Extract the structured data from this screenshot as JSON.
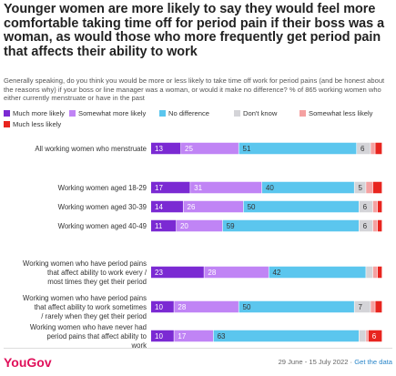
{
  "header": {
    "title": "Younger women are more likely to say they would feel more comfortable taking time off for period pain if their boss was a woman, as would those who more frequently get period pain that affects their ability to work",
    "subtitle": "Generally speaking, do you think you would be more or less likely to take time off work for period pains (and be honest about the reasons why) if your boss or line manager was a woman, or would it make no difference? % of 865 working women who either currently menstruate or have in the past"
  },
  "legend": [
    {
      "label": "Much more likely",
      "color": "#7b2ad3"
    },
    {
      "label": "Somewhat more likely",
      "color": "#c084f5"
    },
    {
      "label": "No difference",
      "color": "#5bc6ee"
    },
    {
      "label": "Don't know",
      "color": "#d4d4d8"
    },
    {
      "label": "Somewhat less likely",
      "color": "#f5a1a1"
    },
    {
      "label": "Much less likely",
      "color": "#e8251f"
    }
  ],
  "chart_data": {
    "type": "bar",
    "orientation": "horizontal",
    "stacked": true,
    "categories": [
      "All working women who menstruate",
      "Working women aged 18-29",
      "Working women aged 30-39",
      "Working women aged 40-49",
      "Working women who have period pains that affect ability to work every / most times they get their period",
      "Working women who have period pains that affect ability to work sometimes / rarely when they get their period",
      "Working women who have never had period pains that affect ability to work"
    ],
    "series": [
      {
        "name": "Much more likely",
        "values": [
          13,
          17,
          14,
          11,
          23,
          10,
          10
        ],
        "labels": [
          "13",
          "17",
          "14",
          "11",
          "23",
          "10",
          "10"
        ]
      },
      {
        "name": "Somewhat more likely",
        "values": [
          25,
          31,
          26,
          20,
          28,
          28,
          17
        ],
        "labels": [
          "25",
          "31",
          "26",
          "20",
          "28",
          "28",
          "17"
        ]
      },
      {
        "name": "No difference",
        "values": [
          51,
          40,
          50,
          59,
          42,
          50,
          63
        ],
        "labels": [
          "51",
          "40",
          "50",
          "59",
          "42",
          "50",
          "63"
        ]
      },
      {
        "name": "Don't know",
        "values": [
          6,
          5,
          6,
          6,
          3,
          7,
          3
        ],
        "labels": [
          "6",
          "5",
          "6",
          "6",
          "",
          "7",
          ""
        ]
      },
      {
        "name": "Somewhat less likely",
        "values": [
          2,
          3,
          2,
          2,
          2,
          2,
          1
        ],
        "labels": [
          "",
          "",
          "",
          "",
          "",
          "",
          ""
        ]
      },
      {
        "name": "Much less likely",
        "values": [
          3,
          4,
          2,
          2,
          2,
          3,
          6
        ],
        "labels": [
          "",
          "",
          "",
          "",
          "",
          "",
          "6"
        ]
      }
    ],
    "xlim": [
      0,
      100
    ],
    "grid": false,
    "legend_position": "top"
  },
  "footer": {
    "brand": "YouGov",
    "date_range": "29 June - 15 July 2022",
    "separator": "·",
    "data_link": "Get the data"
  }
}
